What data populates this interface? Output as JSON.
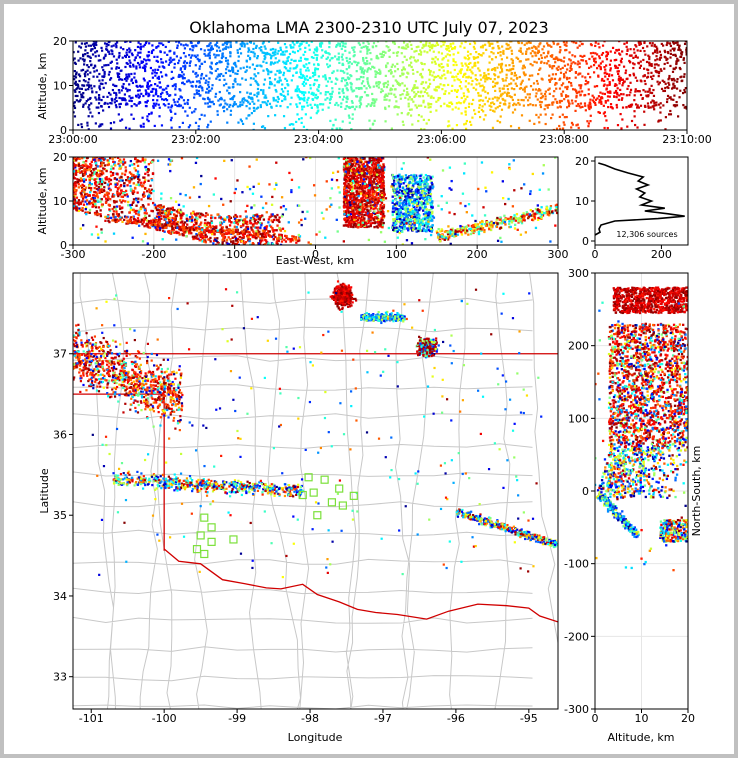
{
  "title": "Oklahoma LMA 2300-2310 UTC July 07, 2023",
  "chart_data": [
    {
      "panel": "time-height",
      "type": "scatter",
      "ylabel": "Altitude, km",
      "xlim": [
        "23:00:00",
        "23:10:00"
      ],
      "ylim": [
        0,
        20
      ],
      "xticks": [
        "23:00:00",
        "23:02:00",
        "23:04:00",
        "23:06:00",
        "23:08:00",
        "23:10:00"
      ],
      "yticks": [
        "0",
        "10",
        "20"
      ],
      "color_by": "time",
      "density_altitude_range_km": [
        5,
        20
      ]
    },
    {
      "panel": "east-west-altitude",
      "type": "scatter",
      "xlabel": "East-West, km",
      "ylabel": "Altitude, km",
      "xlim": [
        -300,
        300
      ],
      "ylim": [
        0,
        20
      ],
      "xticks": [
        "-300",
        "-200",
        "-100",
        "0",
        "100",
        "200",
        "300"
      ],
      "yticks": [
        "0",
        "10",
        "20"
      ]
    },
    {
      "panel": "altitude-histogram",
      "type": "line",
      "xticks": [
        "0",
        "200"
      ],
      "yticks": [
        "0",
        "10",
        "20"
      ],
      "xlim": [
        0,
        280
      ],
      "ylim": [
        -1,
        21
      ],
      "annotation": "12,306 sources",
      "profile": [
        {
          "alt": 1.5,
          "count": 0
        },
        {
          "alt": 2.2,
          "count": 15
        },
        {
          "alt": 3,
          "count": 12
        },
        {
          "alt": 4,
          "count": 18
        },
        {
          "alt": 5,
          "count": 60
        },
        {
          "alt": 5.6,
          "count": 190
        },
        {
          "alt": 6.2,
          "count": 270
        },
        {
          "alt": 6.8,
          "count": 220
        },
        {
          "alt": 7.5,
          "count": 150
        },
        {
          "alt": 8.2,
          "count": 210
        },
        {
          "alt": 9,
          "count": 140
        },
        {
          "alt": 10,
          "count": 170
        },
        {
          "alt": 11,
          "count": 135
        },
        {
          "alt": 12,
          "count": 150
        },
        {
          "alt": 13,
          "count": 125
        },
        {
          "alt": 14,
          "count": 160
        },
        {
          "alt": 15,
          "count": 130
        },
        {
          "alt": 16,
          "count": 145
        },
        {
          "alt": 17,
          "count": 100
        },
        {
          "alt": 18,
          "count": 60
        },
        {
          "alt": 19,
          "count": 30
        },
        {
          "alt": 19.5,
          "count": 10
        }
      ]
    },
    {
      "panel": "plan-view",
      "type": "scatter",
      "xlabel": "Longitude",
      "ylabel": "Latitude",
      "xlim": [
        -101.25,
        -94.6
      ],
      "ylim": [
        32.6,
        38.0
      ],
      "xticks": [
        "-101",
        "-100",
        "-99",
        "-98",
        "-97",
        "-96",
        "-95"
      ],
      "yticks": [
        "33",
        "34",
        "35",
        "36",
        "37"
      ],
      "stations": [
        {
          "lon": -98.02,
          "lat": 35.47
        },
        {
          "lon": -97.8,
          "lat": 35.44
        },
        {
          "lon": -97.6,
          "lat": 35.33
        },
        {
          "lon": -97.4,
          "lat": 35.24
        },
        {
          "lon": -97.55,
          "lat": 35.12
        },
        {
          "lon": -97.7,
          "lat": 35.16
        },
        {
          "lon": -97.9,
          "lat": 35.0
        },
        {
          "lon": -98.1,
          "lat": 35.25
        },
        {
          "lon": -97.95,
          "lat": 35.28
        },
        {
          "lon": -99.45,
          "lat": 34.97
        },
        {
          "lon": -99.35,
          "lat": 34.85
        },
        {
          "lon": -99.5,
          "lat": 34.75
        },
        {
          "lon": -99.35,
          "lat": 34.67
        },
        {
          "lon": -99.05,
          "lat": 34.7
        },
        {
          "lon": -99.45,
          "lat": 34.52
        },
        {
          "lon": -99.55,
          "lat": 34.58
        }
      ]
    },
    {
      "panel": "altitude-north-south",
      "type": "scatter",
      "xlabel": "Altitude, km",
      "ylabel": "North-South, km",
      "xlim": [
        0,
        20
      ],
      "ylim": [
        -300,
        300
      ],
      "xticks": [
        "0",
        "10",
        "20"
      ],
      "yticks": [
        "-300",
        "-200",
        "-100",
        "0",
        "100",
        "200",
        "300"
      ]
    }
  ]
}
